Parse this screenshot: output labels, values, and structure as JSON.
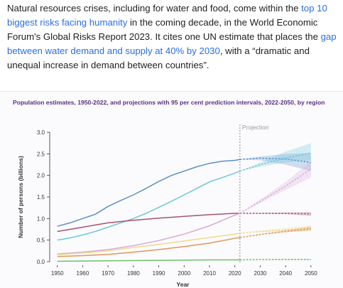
{
  "article": {
    "p1": "Natural resources crises, including for water and food, come within the ",
    "link1": "top 10 biggest risks facing humanity",
    "p2": " in the coming decade, in the World Economic Forum's Global Risks Report 2023. It cites one UN estimate that places the ",
    "link2": "gap between water demand and supply at 40% by 2030",
    "p3": ", with a “dramatic and unequal increase in demand between countries”."
  },
  "chart_data": {
    "type": "line",
    "title": "Population estimates, 1950-2022, and projections with 95 per cent prediction intervals, 2022-2050, by region",
    "xlabel": "Year",
    "ylabel": "Number of persons (billions)",
    "annotation": "Projection",
    "projection_start": 2022,
    "xlim": [
      1947,
      2052
    ],
    "ylim": [
      -0.05,
      3.05
    ],
    "xticks": [
      1950,
      1960,
      1970,
      1980,
      1990,
      2000,
      2010,
      2020,
      2030,
      2040,
      2050
    ],
    "yticks": [
      0.0,
      0.5,
      1.0,
      1.5,
      2.0,
      2.5,
      3.0
    ],
    "ytick_labels": [
      "0.0",
      "0.5",
      "1.0",
      "1.5",
      "2.0",
      "2.5",
      "3.0"
    ],
    "grid": false,
    "series": [
      {
        "color": "#5b8fc7",
        "historical": [
          [
            1950,
            0.82
          ],
          [
            1955,
            0.9
          ],
          [
            1960,
            1.0
          ],
          [
            1965,
            1.1
          ],
          [
            1970,
            1.28
          ],
          [
            1975,
            1.42
          ],
          [
            1980,
            1.55
          ],
          [
            1985,
            1.7
          ],
          [
            1990,
            1.86
          ],
          [
            1995,
            2.0
          ],
          [
            2000,
            2.1
          ],
          [
            2005,
            2.2
          ],
          [
            2010,
            2.28
          ],
          [
            2015,
            2.33
          ],
          [
            2020,
            2.35
          ],
          [
            2022,
            2.37
          ]
        ],
        "projection": [
          [
            2022,
            2.37
          ],
          [
            2030,
            2.4
          ],
          [
            2040,
            2.38
          ],
          [
            2050,
            2.3
          ]
        ],
        "band_low": [
          2.37,
          2.35,
          2.25,
          2.1
        ],
        "band_high": [
          2.37,
          2.44,
          2.5,
          2.52
        ]
      },
      {
        "color": "#6cc6dc",
        "historical": [
          [
            1950,
            0.5
          ],
          [
            1955,
            0.55
          ],
          [
            1960,
            0.62
          ],
          [
            1965,
            0.7
          ],
          [
            1970,
            0.8
          ],
          [
            1975,
            0.9
          ],
          [
            1980,
            1.0
          ],
          [
            1985,
            1.12
          ],
          [
            1990,
            1.26
          ],
          [
            1995,
            1.4
          ],
          [
            2000,
            1.55
          ],
          [
            2005,
            1.7
          ],
          [
            2010,
            1.85
          ],
          [
            2015,
            1.95
          ],
          [
            2020,
            2.05
          ],
          [
            2022,
            2.1
          ]
        ],
        "projection": [
          [
            2022,
            2.1
          ],
          [
            2030,
            2.25
          ],
          [
            2040,
            2.4
          ],
          [
            2050,
            2.52
          ]
        ],
        "band_low": [
          2.1,
          2.2,
          2.3,
          2.35
        ],
        "band_high": [
          2.1,
          2.3,
          2.55,
          2.75
        ]
      },
      {
        "color": "#a9526b",
        "historical": [
          [
            1950,
            0.7
          ],
          [
            1955,
            0.75
          ],
          [
            1960,
            0.8
          ],
          [
            1965,
            0.85
          ],
          [
            1970,
            0.9
          ],
          [
            1980,
            0.96
          ],
          [
            1990,
            1.01
          ],
          [
            2000,
            1.05
          ],
          [
            2010,
            1.09
          ],
          [
            2020,
            1.12
          ],
          [
            2022,
            1.12
          ]
        ],
        "projection": [
          [
            2022,
            1.12
          ],
          [
            2030,
            1.12
          ],
          [
            2040,
            1.12
          ],
          [
            2050,
            1.11
          ]
        ],
        "band_low": [
          1.12,
          1.11,
          1.1,
          1.06
        ],
        "band_high": [
          1.12,
          1.13,
          1.14,
          1.15
        ]
      },
      {
        "color": "#d9a8d6",
        "historical": [
          [
            1950,
            0.18
          ],
          [
            1960,
            0.22
          ],
          [
            1970,
            0.28
          ],
          [
            1980,
            0.37
          ],
          [
            1990,
            0.49
          ],
          [
            2000,
            0.64
          ],
          [
            2010,
            0.83
          ],
          [
            2020,
            1.08
          ],
          [
            2022,
            1.12
          ]
        ],
        "projection": [
          [
            2022,
            1.12
          ],
          [
            2030,
            1.4
          ],
          [
            2040,
            1.75
          ],
          [
            2050,
            2.15
          ]
        ],
        "band_low": [
          1.12,
          1.36,
          1.66,
          1.95
        ],
        "band_high": [
          1.12,
          1.44,
          1.85,
          2.32
        ]
      },
      {
        "color": "#f0d98a",
        "historical": [
          [
            1950,
            0.16
          ],
          [
            1960,
            0.2
          ],
          [
            1970,
            0.25
          ],
          [
            1980,
            0.33
          ],
          [
            1990,
            0.4
          ],
          [
            2000,
            0.48
          ],
          [
            2010,
            0.56
          ],
          [
            2020,
            0.64
          ],
          [
            2022,
            0.66
          ]
        ],
        "projection": [
          [
            2022,
            0.66
          ],
          [
            2030,
            0.7
          ],
          [
            2040,
            0.74
          ],
          [
            2050,
            0.78
          ]
        ],
        "band_low": [
          0.66,
          0.68,
          0.7,
          0.72
        ],
        "band_high": [
          0.66,
          0.72,
          0.78,
          0.84
        ]
      },
      {
        "color": "#e0965a",
        "historical": [
          [
            1950,
            0.12
          ],
          [
            1960,
            0.14
          ],
          [
            1970,
            0.17
          ],
          [
            1980,
            0.22
          ],
          [
            1990,
            0.28
          ],
          [
            2000,
            0.35
          ],
          [
            2010,
            0.43
          ],
          [
            2020,
            0.54
          ],
          [
            2022,
            0.56
          ]
        ],
        "projection": [
          [
            2022,
            0.56
          ],
          [
            2030,
            0.63
          ],
          [
            2040,
            0.7
          ],
          [
            2050,
            0.76
          ]
        ],
        "band_low": [
          0.56,
          0.62,
          0.68,
          0.72
        ],
        "band_high": [
          0.56,
          0.64,
          0.73,
          0.82
        ]
      },
      {
        "color": "#6fbf6b",
        "historical": [
          [
            1950,
            0.01
          ],
          [
            1970,
            0.02
          ],
          [
            1990,
            0.03
          ],
          [
            2010,
            0.04
          ],
          [
            2022,
            0.04
          ]
        ],
        "projection": [
          [
            2022,
            0.04
          ],
          [
            2030,
            0.05
          ],
          [
            2040,
            0.05
          ],
          [
            2050,
            0.05
          ]
        ],
        "band_low": [
          0.04,
          0.04,
          0.04,
          0.04
        ],
        "band_high": [
          0.04,
          0.05,
          0.06,
          0.06
        ]
      }
    ]
  }
}
